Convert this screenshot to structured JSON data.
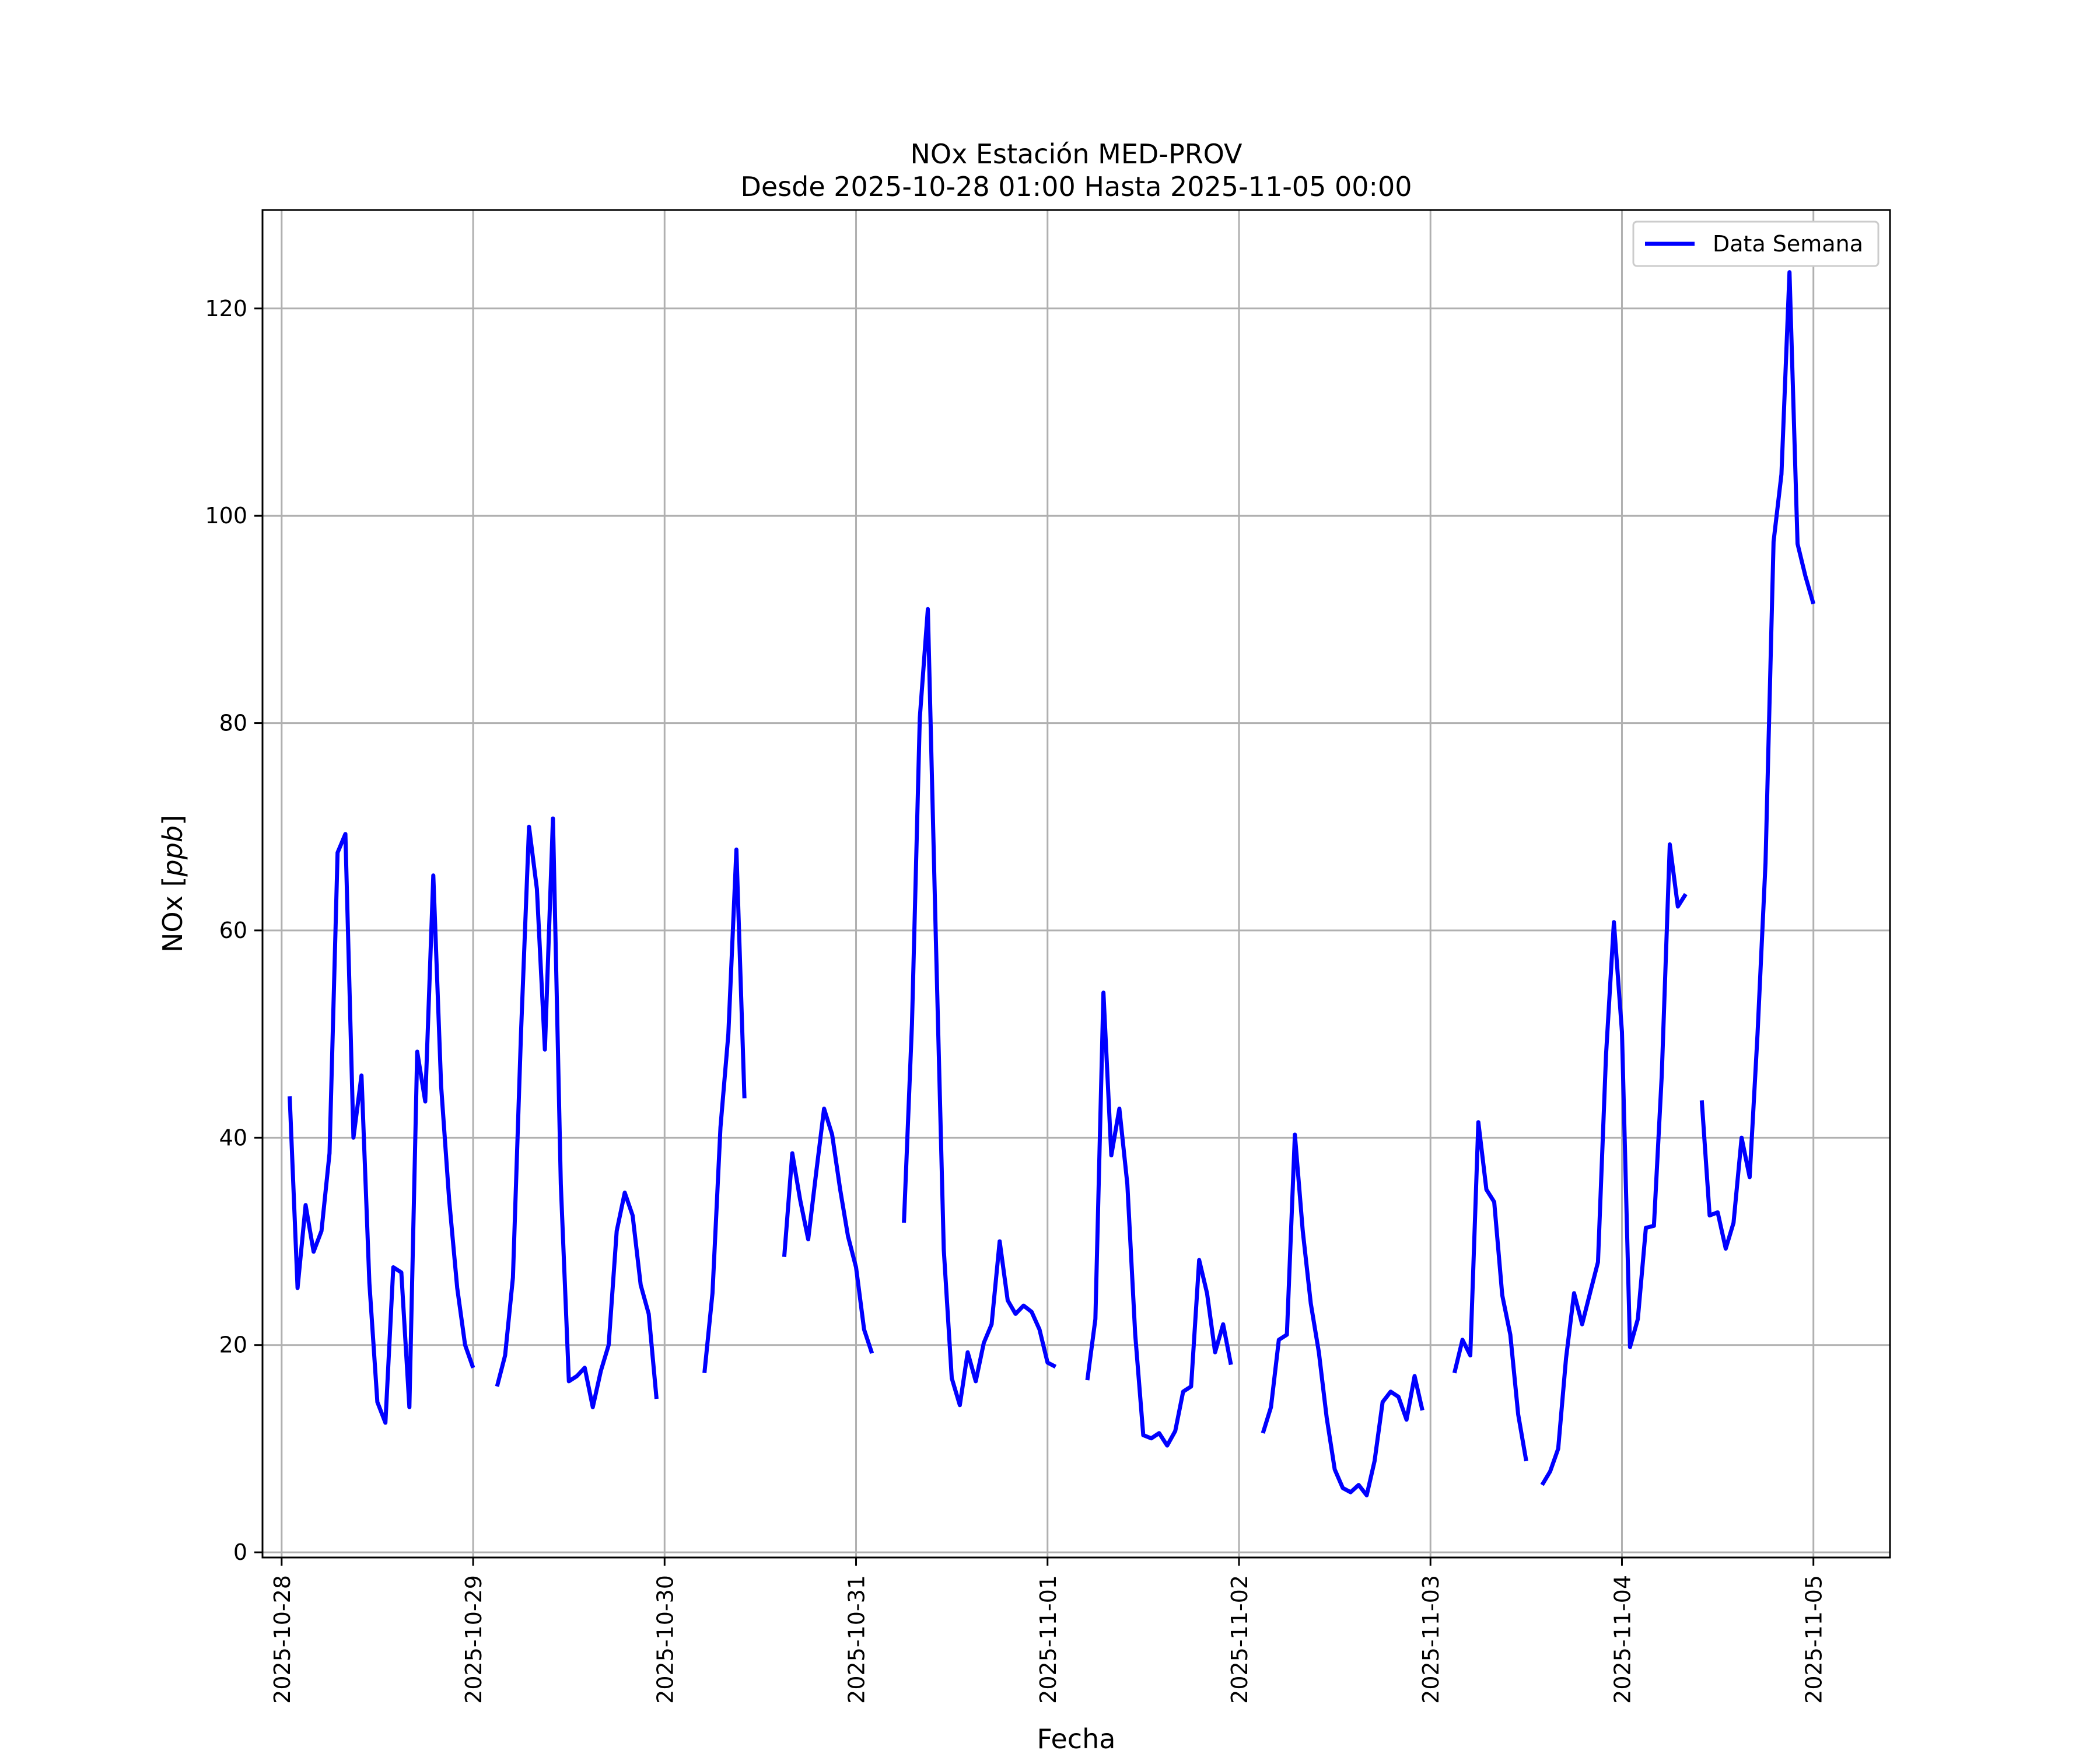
{
  "chart_data": {
    "type": "line",
    "title": "NOx Estación MED-PROV",
    "subtitle": "Desde 2025-10-28 01:00 Hasta 2025-11-05 00:00",
    "xlabel": "Fecha",
    "ylabel_main": "NOx [",
    "ylabel_unit": "ppb",
    "ylabel_close": "]",
    "xlim": [
      -0.1,
      8.4
    ],
    "ylim": [
      -0.5,
      129.5
    ],
    "grid": true,
    "legend_position": "top-right",
    "x_ticks": [
      {
        "x": 0,
        "label": "2025-10-28"
      },
      {
        "x": 1,
        "label": "2025-10-29"
      },
      {
        "x": 2,
        "label": "2025-10-30"
      },
      {
        "x": 3,
        "label": "2025-10-31"
      },
      {
        "x": 4,
        "label": "2025-11-01"
      },
      {
        "x": 5,
        "label": "2025-11-02"
      },
      {
        "x": 6,
        "label": "2025-11-03"
      },
      {
        "x": 7,
        "label": "2025-11-04"
      },
      {
        "x": 8,
        "label": "2025-11-05"
      }
    ],
    "y_ticks": [
      {
        "y": 0,
        "label": "0"
      },
      {
        "y": 20,
        "label": "20"
      },
      {
        "y": 40,
        "label": "40"
      },
      {
        "y": 60,
        "label": "60"
      },
      {
        "y": 80,
        "label": "80"
      },
      {
        "y": 100,
        "label": "100"
      },
      {
        "y": 120,
        "label": "120"
      }
    ],
    "series": [
      {
        "name": "Data Semana",
        "color": "#0000ff",
        "segments": [
          [
            [
              0.042,
              44
            ],
            [
              0.083,
              25.5
            ],
            [
              0.125,
              33.5
            ],
            [
              0.167,
              29
            ],
            [
              0.208,
              31
            ],
            [
              0.25,
              38.5
            ],
            [
              0.292,
              67.5
            ],
            [
              0.333,
              69.3
            ],
            [
              0.375,
              40
            ],
            [
              0.417,
              46
            ],
            [
              0.458,
              26
            ],
            [
              0.5,
              14.5
            ],
            [
              0.542,
              12.5
            ],
            [
              0.583,
              27.5
            ],
            [
              0.625,
              27
            ],
            [
              0.667,
              14
            ],
            [
              0.708,
              48.3
            ],
            [
              0.75,
              43.5
            ],
            [
              0.792,
              65.3
            ],
            [
              0.833,
              45
            ],
            [
              0.875,
              34
            ],
            [
              0.917,
              25.5
            ],
            [
              0.958,
              20
            ],
            [
              1.0,
              17.8
            ]
          ],
          [
            [
              1.125,
              16
            ],
            [
              1.167,
              19
            ],
            [
              1.208,
              26.5
            ],
            [
              1.25,
              50
            ],
            [
              1.292,
              70
            ],
            [
              1.333,
              64
            ],
            [
              1.375,
              48.5
            ],
            [
              1.417,
              70.8
            ],
            [
              1.458,
              35.5
            ],
            [
              1.5,
              16.5
            ],
            [
              1.542,
              17
            ],
            [
              1.583,
              17.8
            ],
            [
              1.625,
              14
            ],
            [
              1.667,
              17.5
            ],
            [
              1.708,
              20
            ],
            [
              1.75,
              31
            ],
            [
              1.792,
              34.7
            ],
            [
              1.833,
              32.5
            ],
            [
              1.875,
              25.8
            ],
            [
              1.917,
              23
            ],
            [
              1.958,
              14.8
            ]
          ],
          [
            [
              2.208,
              17.3
            ],
            [
              2.25,
              25
            ],
            [
              2.292,
              41
            ],
            [
              2.333,
              50
            ],
            [
              2.375,
              67.8
            ],
            [
              2.417,
              43.8
            ]
          ],
          [
            [
              2.625,
              28.5
            ],
            [
              2.667,
              38.5
            ],
            [
              2.708,
              34
            ],
            [
              2.75,
              30.2
            ],
            [
              2.792,
              36.7
            ],
            [
              2.833,
              42.8
            ],
            [
              2.875,
              40.3
            ],
            [
              2.917,
              35
            ],
            [
              2.958,
              30.5
            ],
            [
              3.0,
              27.5
            ],
            [
              3.042,
              21.5
            ],
            [
              3.083,
              19.2
            ]
          ],
          [
            [
              3.25,
              31.8
            ],
            [
              3.292,
              51
            ],
            [
              3.333,
              80.5
            ],
            [
              3.375,
              91
            ],
            [
              3.417,
              59
            ],
            [
              3.458,
              29.2
            ],
            [
              3.5,
              16.8
            ],
            [
              3.542,
              14.2
            ],
            [
              3.583,
              19.3
            ],
            [
              3.625,
              16.5
            ],
            [
              3.667,
              20.2
            ],
            [
              3.708,
              22
            ],
            [
              3.75,
              30
            ],
            [
              3.792,
              24.3
            ],
            [
              3.833,
              23
            ],
            [
              3.875,
              23.8
            ],
            [
              3.917,
              23.2
            ],
            [
              3.958,
              21.5
            ],
            [
              4.0,
              18.3
            ],
            [
              4.042,
              17.9
            ]
          ],
          [
            [
              4.208,
              16.6
            ],
            [
              4.25,
              22.5
            ],
            [
              4.292,
              54
            ],
            [
              4.333,
              38.3
            ],
            [
              4.375,
              42.8
            ],
            [
              4.417,
              35.5
            ],
            [
              4.458,
              21
            ],
            [
              4.5,
              11.3
            ],
            [
              4.542,
              11
            ],
            [
              4.583,
              11.5
            ],
            [
              4.625,
              10.3
            ],
            [
              4.667,
              11.7
            ],
            [
              4.708,
              15.5
            ],
            [
              4.75,
              16
            ],
            [
              4.792,
              28.2
            ],
            [
              4.833,
              25
            ],
            [
              4.875,
              19.3
            ],
            [
              4.917,
              22
            ],
            [
              4.958,
              18.1
            ]
          ],
          [
            [
              5.125,
              11.5
            ],
            [
              5.167,
              14
            ],
            [
              5.208,
              20.5
            ],
            [
              5.25,
              21
            ],
            [
              5.292,
              40.3
            ],
            [
              5.333,
              31
            ],
            [
              5.375,
              24
            ],
            [
              5.417,
              19.3
            ],
            [
              5.458,
              13
            ],
            [
              5.5,
              8
            ],
            [
              5.542,
              6.2
            ],
            [
              5.583,
              5.8
            ],
            [
              5.625,
              6.5
            ],
            [
              5.667,
              5.5
            ],
            [
              5.708,
              8.8
            ],
            [
              5.75,
              14.5
            ],
            [
              5.792,
              15.5
            ],
            [
              5.833,
              15
            ],
            [
              5.875,
              12.8
            ],
            [
              5.917,
              17
            ],
            [
              5.958,
              13.7
            ]
          ],
          [
            [
              6.125,
              17.3
            ],
            [
              6.167,
              20.5
            ],
            [
              6.208,
              19
            ],
            [
              6.25,
              41.5
            ],
            [
              6.292,
              35
            ],
            [
              6.333,
              33.8
            ],
            [
              6.375,
              24.8
            ],
            [
              6.417,
              21
            ],
            [
              6.458,
              13.3
            ],
            [
              6.5,
              8.8
            ]
          ],
          [
            [
              6.583,
              6.5
            ],
            [
              6.625,
              7.8
            ],
            [
              6.667,
              10
            ],
            [
              6.708,
              18.7
            ],
            [
              6.75,
              25
            ],
            [
              6.792,
              22
            ],
            [
              6.833,
              25
            ],
            [
              6.875,
              28
            ],
            [
              6.917,
              48
            ],
            [
              6.958,
              60.8
            ],
            [
              7.0,
              50.2
            ],
            [
              7.042,
              19.8
            ],
            [
              7.083,
              22.5
            ],
            [
              7.125,
              31.3
            ],
            [
              7.167,
              31.5
            ],
            [
              7.208,
              46
            ],
            [
              7.25,
              68.3
            ],
            [
              7.292,
              62.3
            ],
            [
              7.333,
              63.5
            ]
          ],
          [
            [
              7.417,
              43.6
            ],
            [
              7.458,
              32.5
            ],
            [
              7.5,
              32.8
            ],
            [
              7.542,
              29.3
            ],
            [
              7.583,
              31.8
            ],
            [
              7.625,
              40
            ],
            [
              7.667,
              36.2
            ],
            [
              7.708,
              50
            ],
            [
              7.75,
              66.5
            ],
            [
              7.792,
              97.5
            ],
            [
              7.833,
              104
            ],
            [
              7.875,
              123.5
            ],
            [
              7.917,
              97.3
            ],
            [
              7.958,
              94.2
            ],
            [
              8.0,
              91.5
            ]
          ]
        ]
      }
    ]
  }
}
